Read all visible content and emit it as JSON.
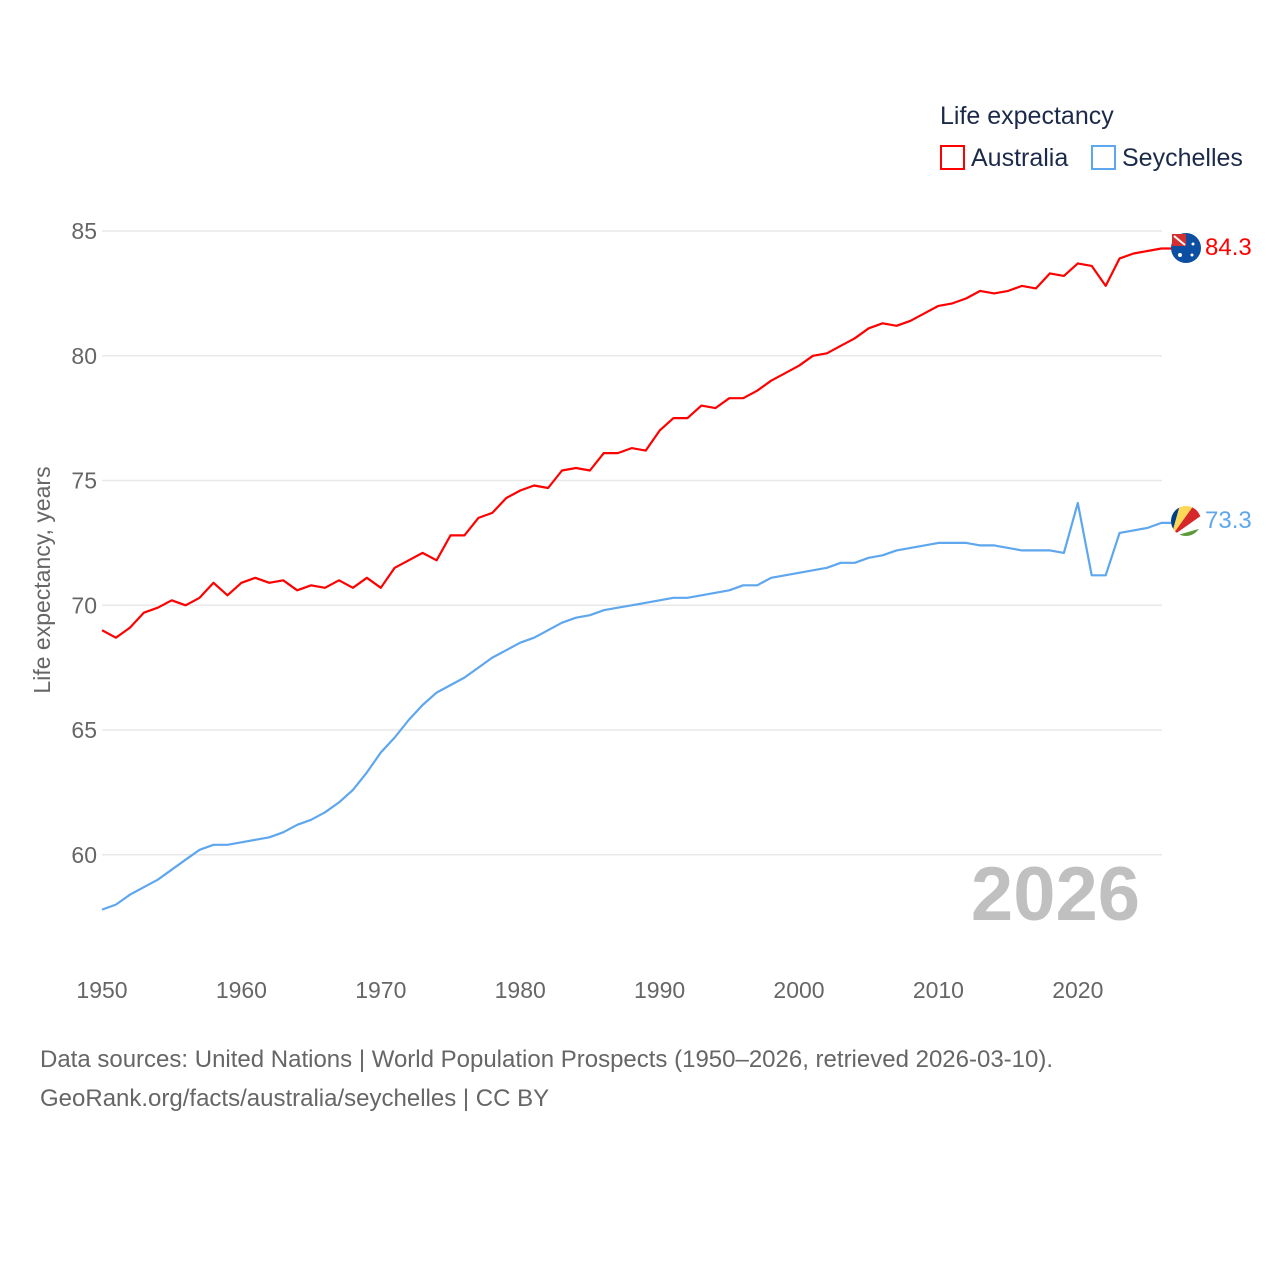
{
  "chart_data": {
    "type": "line",
    "legend_title": "Life expectancy",
    "legend_placement": "top-right",
    "ylabel": "Life expectancy, years",
    "xlabel": "",
    "xlim": [
      1950,
      2026
    ],
    "ylim": [
      57,
      87
    ],
    "yticks": [
      60,
      65,
      70,
      75,
      80,
      85
    ],
    "xticks": [
      1950,
      1960,
      1970,
      1980,
      1990,
      2000,
      2010,
      2020
    ],
    "grid": true,
    "year_watermark": "2026",
    "x_start": 1950,
    "series": [
      {
        "name": "Australia",
        "color": "#ff0000",
        "end_label": "84.3",
        "values": [
          69.0,
          68.7,
          69.1,
          69.7,
          69.9,
          70.2,
          70.0,
          70.3,
          70.9,
          70.4,
          70.9,
          71.1,
          70.9,
          71.0,
          70.6,
          70.8,
          70.7,
          71.0,
          70.7,
          71.1,
          70.7,
          71.5,
          71.8,
          72.1,
          71.8,
          72.8,
          72.8,
          73.5,
          73.7,
          74.3,
          74.6,
          74.8,
          74.7,
          75.4,
          75.5,
          75.4,
          76.1,
          76.1,
          76.3,
          76.2,
          77.0,
          77.5,
          77.5,
          78.0,
          77.9,
          78.3,
          78.3,
          78.6,
          79.0,
          79.3,
          79.6,
          80.0,
          80.1,
          80.4,
          80.7,
          81.1,
          81.3,
          81.2,
          81.4,
          81.7,
          82.0,
          82.1,
          82.3,
          82.6,
          82.5,
          82.6,
          82.8,
          82.7,
          83.3,
          83.2,
          83.7,
          83.6,
          82.8,
          83.9,
          84.1,
          84.2,
          84.3
        ]
      },
      {
        "name": "Seychelles",
        "color": "#5ea6ee",
        "end_label": "73.3",
        "values": [
          57.8,
          58.0,
          58.4,
          58.7,
          59.0,
          59.4,
          59.8,
          60.2,
          60.4,
          60.4,
          60.5,
          60.6,
          60.7,
          60.9,
          61.2,
          61.4,
          61.7,
          62.1,
          62.6,
          63.3,
          64.1,
          64.7,
          65.4,
          66.0,
          66.5,
          66.8,
          67.1,
          67.5,
          67.9,
          68.2,
          68.5,
          68.7,
          69.0,
          69.3,
          69.5,
          69.6,
          69.8,
          69.9,
          70.0,
          70.1,
          70.2,
          70.3,
          70.3,
          70.4,
          70.5,
          70.6,
          70.8,
          70.8,
          71.1,
          71.2,
          71.3,
          71.4,
          71.5,
          71.7,
          71.7,
          71.9,
          72.0,
          72.2,
          72.3,
          72.4,
          72.5,
          72.5,
          72.5,
          72.4,
          72.4,
          72.3,
          72.2,
          72.2,
          72.2,
          72.1,
          74.1,
          71.2,
          71.2,
          72.9,
          73.0,
          73.1,
          73.3
        ]
      }
    ]
  },
  "footer": {
    "sources": "Data sources: United Nations | World Population Prospects (1950–2026, retrieved 2026-03-10).",
    "credit": "GeoRank.org/facts/australia/seychelles | CC BY"
  }
}
